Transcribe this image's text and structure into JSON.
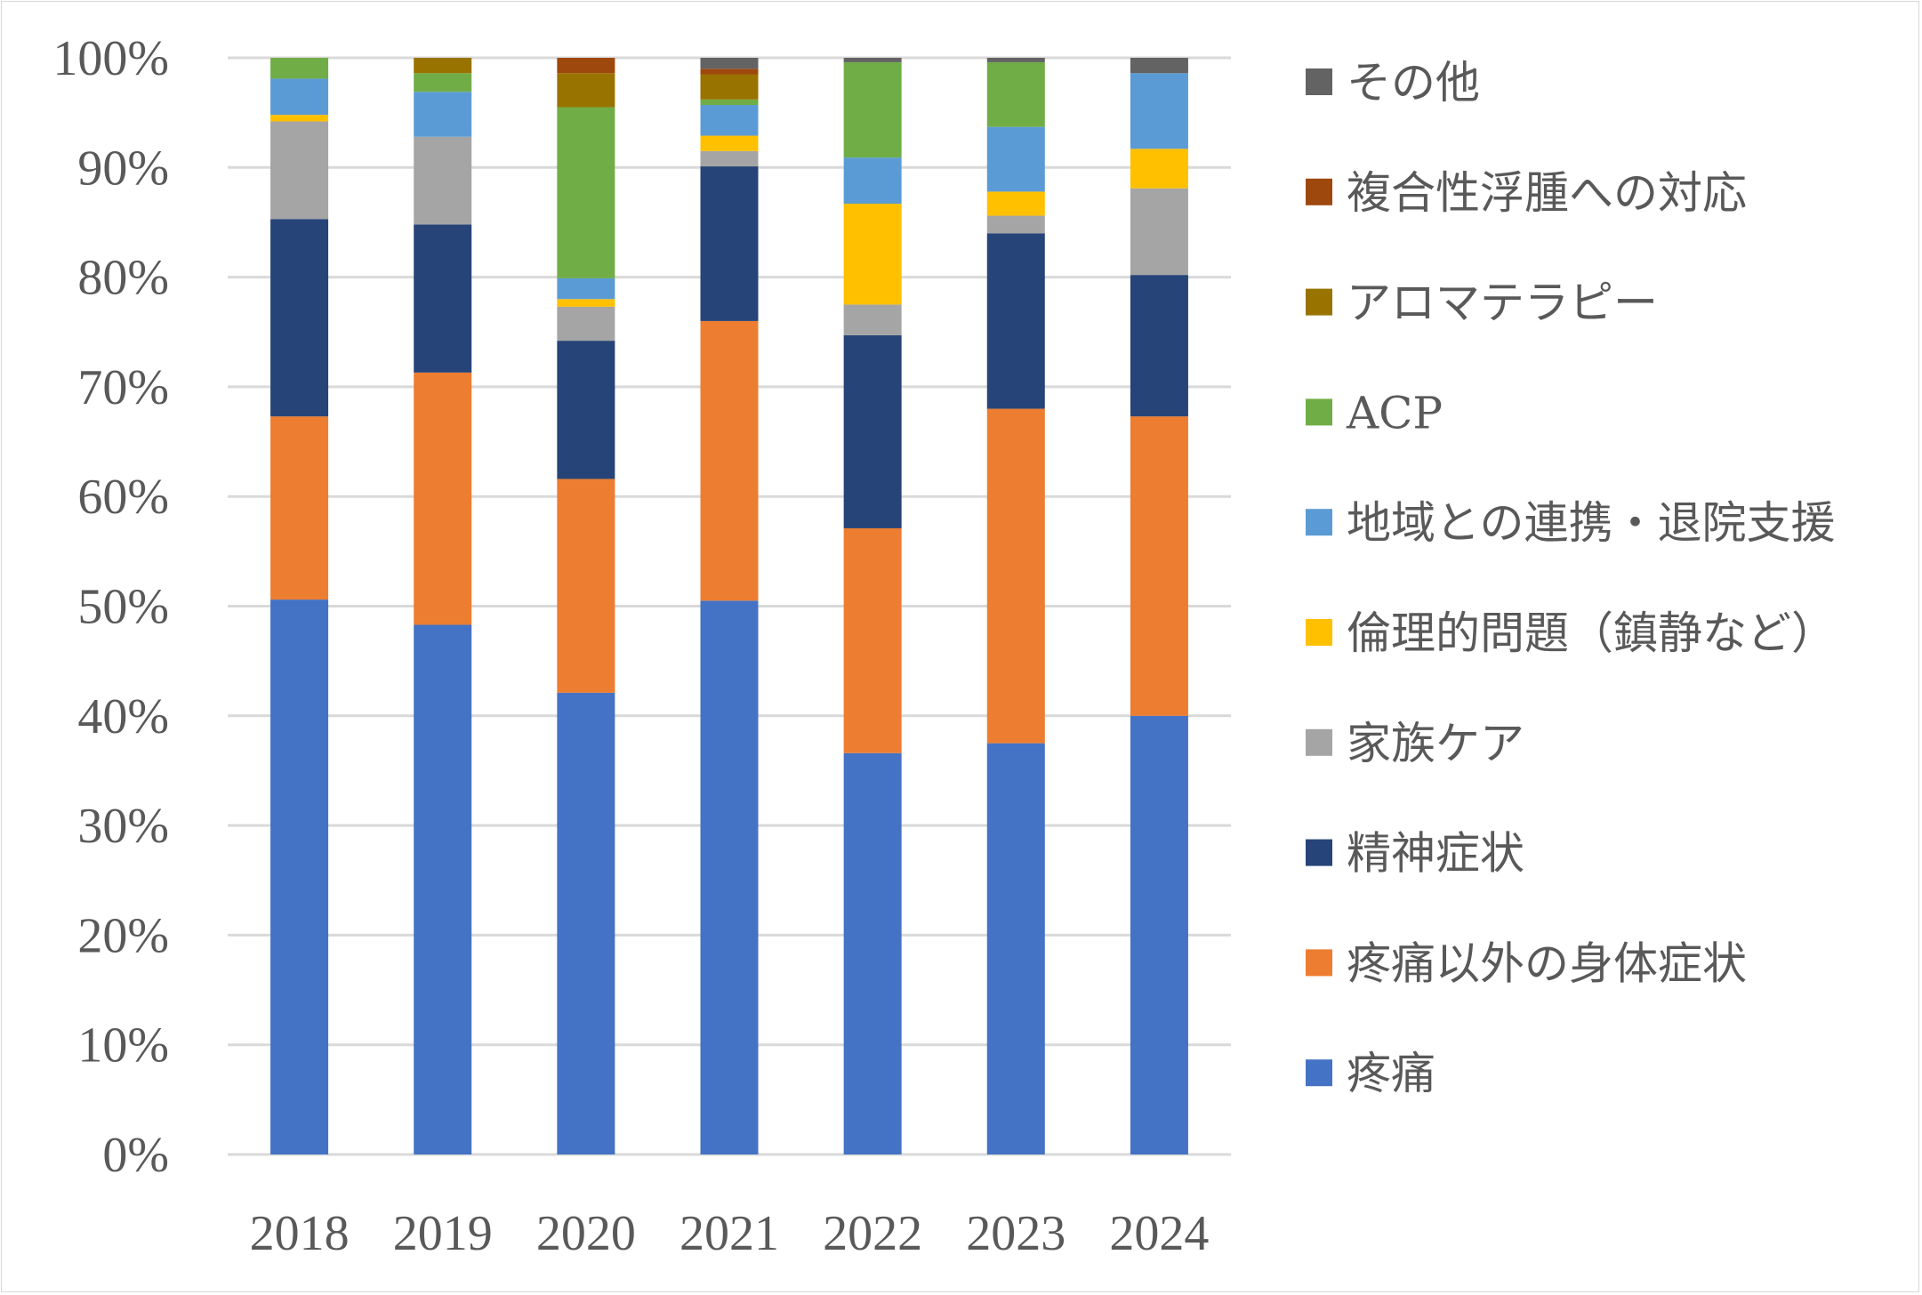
{
  "chart_data": {
    "type": "bar",
    "stacked": "percent",
    "title": "",
    "xlabel": "",
    "ylabel": "",
    "ylim": [
      0,
      100
    ],
    "y_ticks": [
      "0%",
      "10%",
      "20%",
      "30%",
      "40%",
      "50%",
      "60%",
      "70%",
      "80%",
      "90%",
      "100%"
    ],
    "grid": true,
    "legend_position": "right",
    "categories": [
      "2018",
      "2019",
      "2020",
      "2021",
      "2022",
      "2023",
      "2024"
    ],
    "series": [
      {
        "name": "疼痛",
        "color": "#4472C4",
        "values": [
          50.6,
          48.3,
          42.1,
          50.5,
          36.6,
          37.5,
          40.0
        ]
      },
      {
        "name": "疼痛以外の身体症状",
        "color": "#ED7D31",
        "values": [
          16.7,
          23.0,
          19.5,
          25.5,
          20.5,
          30.5,
          27.3
        ]
      },
      {
        "name": "精神症状",
        "color": "#264478",
        "values": [
          18.0,
          13.5,
          12.6,
          14.1,
          17.6,
          16.0,
          12.9
        ]
      },
      {
        "name": "家族ケア",
        "color": "#A5A5A5",
        "values": [
          8.9,
          8.0,
          3.1,
          1.4,
          2.8,
          1.6,
          7.9
        ]
      },
      {
        "name": "倫理的問題（鎮静など）",
        "color": "#FFC000",
        "values": [
          0.6,
          0.0,
          0.7,
          1.4,
          9.2,
          2.2,
          3.6
        ]
      },
      {
        "name": "地域との連携・退院支援",
        "color": "#5B9BD5",
        "values": [
          3.3,
          4.1,
          1.9,
          2.8,
          4.2,
          5.9,
          6.9
        ]
      },
      {
        "name": "ACP",
        "color": "#70AD47",
        "values": [
          1.9,
          1.7,
          15.6,
          0.5,
          8.7,
          5.9,
          0.0
        ]
      },
      {
        "name": "アロマテラピー",
        "color": "#997300",
        "values": [
          0.0,
          1.4,
          3.1,
          2.3,
          0.0,
          0.0,
          0.0
        ]
      },
      {
        "name": "複合性浮腫への対応",
        "color": "#9E480E",
        "values": [
          0.0,
          0.0,
          1.4,
          0.5,
          0.0,
          0.0,
          0.0
        ]
      },
      {
        "name": "その他",
        "color": "#636363",
        "values": [
          0.0,
          0.0,
          0.0,
          1.0,
          0.4,
          0.4,
          1.4
        ]
      }
    ]
  }
}
